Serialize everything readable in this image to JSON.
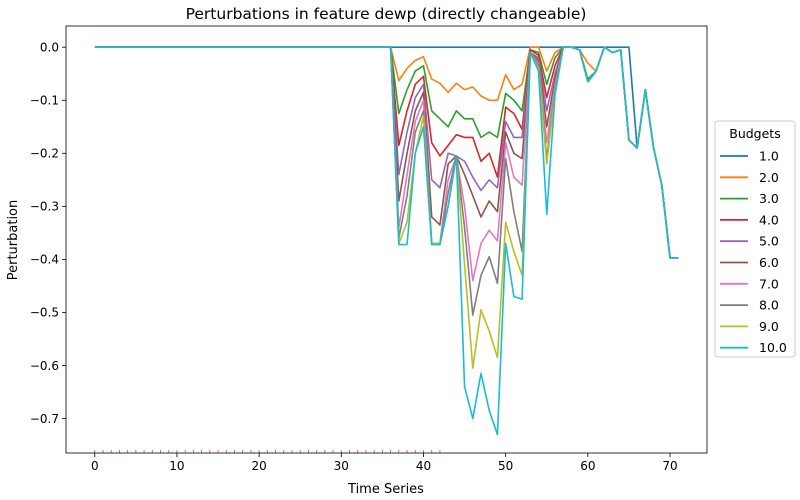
{
  "chart_data": {
    "type": "line",
    "title": "Perturbations in feature dewp (directly changeable)",
    "xlabel": "Time Series",
    "ylabel": "Perturbation",
    "xlim": [
      -3.5,
      74.5
    ],
    "ylim": [
      -0.765,
      0.04
    ],
    "xticks": [
      0,
      10,
      20,
      30,
      40,
      50,
      60,
      70
    ],
    "yticks": [
      0.0,
      -0.1,
      -0.2,
      -0.3,
      -0.4,
      -0.5,
      -0.6,
      -0.7
    ],
    "ytick_labels": [
      "0.0",
      "−0.1",
      "−0.2",
      "−0.3",
      "−0.4",
      "−0.5",
      "−0.6",
      "−0.7"
    ],
    "grid": false,
    "legend": {
      "title": "Budgets",
      "placement": "right outside"
    },
    "x": [
      0,
      1,
      2,
      3,
      4,
      5,
      6,
      7,
      8,
      9,
      10,
      11,
      12,
      13,
      14,
      15,
      16,
      17,
      18,
      19,
      20,
      21,
      22,
      23,
      24,
      25,
      26,
      27,
      28,
      29,
      30,
      31,
      32,
      33,
      34,
      35,
      36,
      37,
      38,
      39,
      40,
      41,
      42,
      43,
      44,
      45,
      46,
      47,
      48,
      49,
      50,
      51,
      52,
      53,
      54,
      55,
      56,
      57,
      58,
      59,
      60,
      61,
      62,
      63,
      64,
      65,
      66,
      67,
      68,
      69,
      70,
      71
    ],
    "series": [
      {
        "name": "1.0",
        "color": "#1f77b4",
        "values": [
          0,
          0,
          0,
          0,
          0,
          0,
          0,
          0,
          0,
          0,
          0,
          0,
          0,
          0,
          0,
          0,
          0,
          0,
          0,
          0,
          0,
          0,
          0,
          0,
          0,
          0,
          0,
          0,
          0,
          0,
          0,
          0,
          0,
          0,
          0,
          0,
          0,
          0,
          0,
          0,
          0,
          0,
          0,
          0,
          0,
          0,
          0,
          0,
          0,
          0,
          0,
          0,
          0,
          0,
          0,
          0,
          0,
          0,
          0,
          0,
          0,
          0,
          0,
          0,
          0,
          0,
          -0.19,
          -0.08,
          -0.19,
          -0.26,
          -0.397,
          -0.397
        ]
      },
      {
        "name": "2.0",
        "color": "#ff7f0e",
        "values": [
          0,
          0,
          0,
          0,
          0,
          0,
          0,
          0,
          0,
          0,
          0,
          0,
          0,
          0,
          0,
          0,
          0,
          0,
          0,
          0,
          0,
          0,
          0,
          0,
          0,
          0,
          0,
          0,
          0,
          0,
          0,
          0,
          0,
          0,
          0,
          0,
          0,
          -0.063,
          -0.04,
          -0.025,
          -0.018,
          -0.06,
          -0.068,
          -0.085,
          -0.068,
          -0.08,
          -0.075,
          -0.092,
          -0.1,
          -0.1,
          -0.052,
          -0.08,
          -0.07,
          0,
          0,
          -0.045,
          -0.01,
          0,
          0,
          -0.005,
          -0.03,
          -0.045,
          0,
          -0.01,
          -0.005,
          -0.175,
          -0.19,
          -0.08,
          -0.19,
          -0.26,
          -0.397,
          -0.397
        ]
      },
      {
        "name": "3.0",
        "color": "#2ca02c",
        "values": [
          0,
          0,
          0,
          0,
          0,
          0,
          0,
          0,
          0,
          0,
          0,
          0,
          0,
          0,
          0,
          0,
          0,
          0,
          0,
          0,
          0,
          0,
          0,
          0,
          0,
          0,
          0,
          0,
          0,
          0,
          0,
          0,
          0,
          0,
          0,
          0,
          0,
          -0.125,
          -0.08,
          -0.045,
          -0.035,
          -0.12,
          -0.135,
          -0.15,
          -0.12,
          -0.135,
          -0.135,
          -0.17,
          -0.16,
          -0.17,
          -0.087,
          -0.1,
          -0.12,
          -0.005,
          -0.01,
          -0.07,
          -0.02,
          0,
          0,
          -0.005,
          -0.06,
          -0.045,
          0,
          -0.01,
          -0.005,
          -0.175,
          -0.19,
          -0.08,
          -0.19,
          -0.26,
          -0.397,
          -0.397
        ]
      },
      {
        "name": "4.0",
        "color": "#d62728",
        "values": [
          0,
          0,
          0,
          0,
          0,
          0,
          0,
          0,
          0,
          0,
          0,
          0,
          0,
          0,
          0,
          0,
          0,
          0,
          0,
          0,
          0,
          0,
          0,
          0,
          0,
          0,
          0,
          0,
          0,
          0,
          0,
          0,
          0,
          0,
          0,
          0,
          0,
          -0.185,
          -0.12,
          -0.07,
          -0.055,
          -0.18,
          -0.205,
          -0.185,
          -0.165,
          -0.17,
          -0.17,
          -0.215,
          -0.2,
          -0.245,
          -0.113,
          -0.125,
          -0.155,
          -0.005,
          -0.015,
          -0.095,
          -0.035,
          0,
          0,
          -0.005,
          -0.065,
          -0.045,
          0,
          -0.01,
          -0.005,
          -0.175,
          -0.19,
          -0.08,
          -0.19,
          -0.26,
          -0.397,
          -0.397
        ]
      },
      {
        "name": "5.0",
        "color": "#9467bd",
        "values": [
          0,
          0,
          0,
          0,
          0,
          0,
          0,
          0,
          0,
          0,
          0,
          0,
          0,
          0,
          0,
          0,
          0,
          0,
          0,
          0,
          0,
          0,
          0,
          0,
          0,
          0,
          0,
          0,
          0,
          0,
          0,
          0,
          0,
          0,
          0,
          0,
          0,
          -0.24,
          -0.16,
          -0.095,
          -0.07,
          -0.25,
          -0.265,
          -0.2,
          -0.205,
          -0.215,
          -0.245,
          -0.27,
          -0.25,
          -0.265,
          -0.14,
          -0.17,
          -0.17,
          -0.01,
          -0.02,
          -0.12,
          -0.05,
          0,
          0,
          -0.005,
          -0.065,
          -0.045,
          0,
          -0.01,
          -0.005,
          -0.175,
          -0.19,
          -0.08,
          -0.19,
          -0.26,
          -0.397,
          -0.397
        ]
      },
      {
        "name": "6.0",
        "color": "#8c564b",
        "values": [
          0,
          0,
          0,
          0,
          0,
          0,
          0,
          0,
          0,
          0,
          0,
          0,
          0,
          0,
          0,
          0,
          0,
          0,
          0,
          0,
          0,
          0,
          0,
          0,
          0,
          0,
          0,
          0,
          0,
          0,
          0,
          0,
          0,
          0,
          0,
          0,
          0,
          -0.29,
          -0.2,
          -0.12,
          -0.085,
          -0.32,
          -0.335,
          -0.22,
          -0.205,
          -0.24,
          -0.28,
          -0.32,
          -0.29,
          -0.31,
          -0.16,
          -0.2,
          -0.21,
          -0.01,
          -0.025,
          -0.15,
          -0.06,
          0,
          0,
          -0.005,
          -0.065,
          -0.045,
          0,
          -0.01,
          -0.005,
          -0.175,
          -0.19,
          -0.08,
          -0.19,
          -0.26,
          -0.397,
          -0.397
        ]
      },
      {
        "name": "7.0",
        "color": "#e377c2",
        "values": [
          0,
          0,
          0,
          0,
          0,
          0,
          0,
          0,
          0,
          0,
          0,
          0,
          0,
          0,
          0,
          0,
          0,
          0,
          0,
          0,
          0,
          0,
          0,
          0,
          0,
          0,
          0,
          0,
          0,
          0,
          0,
          0,
          0,
          0,
          0,
          0,
          0,
          -0.34,
          -0.24,
          -0.14,
          -0.1,
          -0.37,
          -0.37,
          -0.25,
          -0.205,
          -0.3,
          -0.44,
          -0.37,
          -0.345,
          -0.365,
          -0.18,
          -0.245,
          -0.26,
          -0.01,
          -0.03,
          -0.18,
          -0.07,
          0,
          0,
          -0.005,
          -0.065,
          -0.045,
          0,
          -0.01,
          -0.005,
          -0.175,
          -0.19,
          -0.08,
          -0.19,
          -0.26,
          -0.397,
          -0.397
        ]
      },
      {
        "name": "8.0",
        "color": "#7f7f7f",
        "values": [
          0,
          0,
          0,
          0,
          0,
          0,
          0,
          0,
          0,
          0,
          0,
          0,
          0,
          0,
          0,
          0,
          0,
          0,
          0,
          0,
          0,
          0,
          0,
          0,
          0,
          0,
          0,
          0,
          0,
          0,
          0,
          0,
          0,
          0,
          0,
          0,
          0,
          -0.36,
          -0.28,
          -0.16,
          -0.12,
          -0.37,
          -0.37,
          -0.275,
          -0.205,
          -0.34,
          -0.505,
          -0.43,
          -0.395,
          -0.445,
          -0.21,
          -0.31,
          -0.385,
          -0.01,
          -0.035,
          -0.21,
          -0.08,
          0,
          0,
          -0.005,
          -0.065,
          -0.045,
          0,
          -0.01,
          -0.005,
          -0.175,
          -0.19,
          -0.08,
          -0.19,
          -0.26,
          -0.397,
          -0.397
        ]
      },
      {
        "name": "9.0",
        "color": "#bcbd22",
        "values": [
          0,
          0,
          0,
          0,
          0,
          0,
          0,
          0,
          0,
          0,
          0,
          0,
          0,
          0,
          0,
          0,
          0,
          0,
          0,
          0,
          0,
          0,
          0,
          0,
          0,
          0,
          0,
          0,
          0,
          0,
          0,
          0,
          0,
          0,
          0,
          0,
          0,
          -0.37,
          -0.33,
          -0.2,
          -0.13,
          -0.37,
          -0.37,
          -0.3,
          -0.205,
          -0.41,
          -0.605,
          -0.495,
          -0.535,
          -0.585,
          -0.33,
          -0.385,
          -0.43,
          -0.01,
          -0.04,
          -0.22,
          -0.085,
          0,
          0,
          -0.005,
          -0.065,
          -0.045,
          0,
          -0.01,
          -0.005,
          -0.175,
          -0.19,
          -0.08,
          -0.19,
          -0.26,
          -0.397,
          -0.397
        ]
      },
      {
        "name": "10.0",
        "color": "#17becf",
        "values": [
          0,
          0,
          0,
          0,
          0,
          0,
          0,
          0,
          0,
          0,
          0,
          0,
          0,
          0,
          0,
          0,
          0,
          0,
          0,
          0,
          0,
          0,
          0,
          0,
          0,
          0,
          0,
          0,
          0,
          0,
          0,
          0,
          0,
          0,
          0,
          0,
          0,
          -0.372,
          -0.372,
          -0.2,
          -0.15,
          -0.372,
          -0.372,
          -0.3,
          -0.205,
          -0.64,
          -0.7,
          -0.615,
          -0.685,
          -0.73,
          -0.37,
          -0.47,
          -0.475,
          -0.01,
          -0.045,
          -0.315,
          -0.09,
          0,
          0,
          -0.005,
          -0.065,
          -0.045,
          0,
          -0.01,
          -0.005,
          -0.175,
          -0.19,
          -0.08,
          -0.19,
          -0.26,
          -0.397,
          -0.397
        ]
      }
    ]
  }
}
